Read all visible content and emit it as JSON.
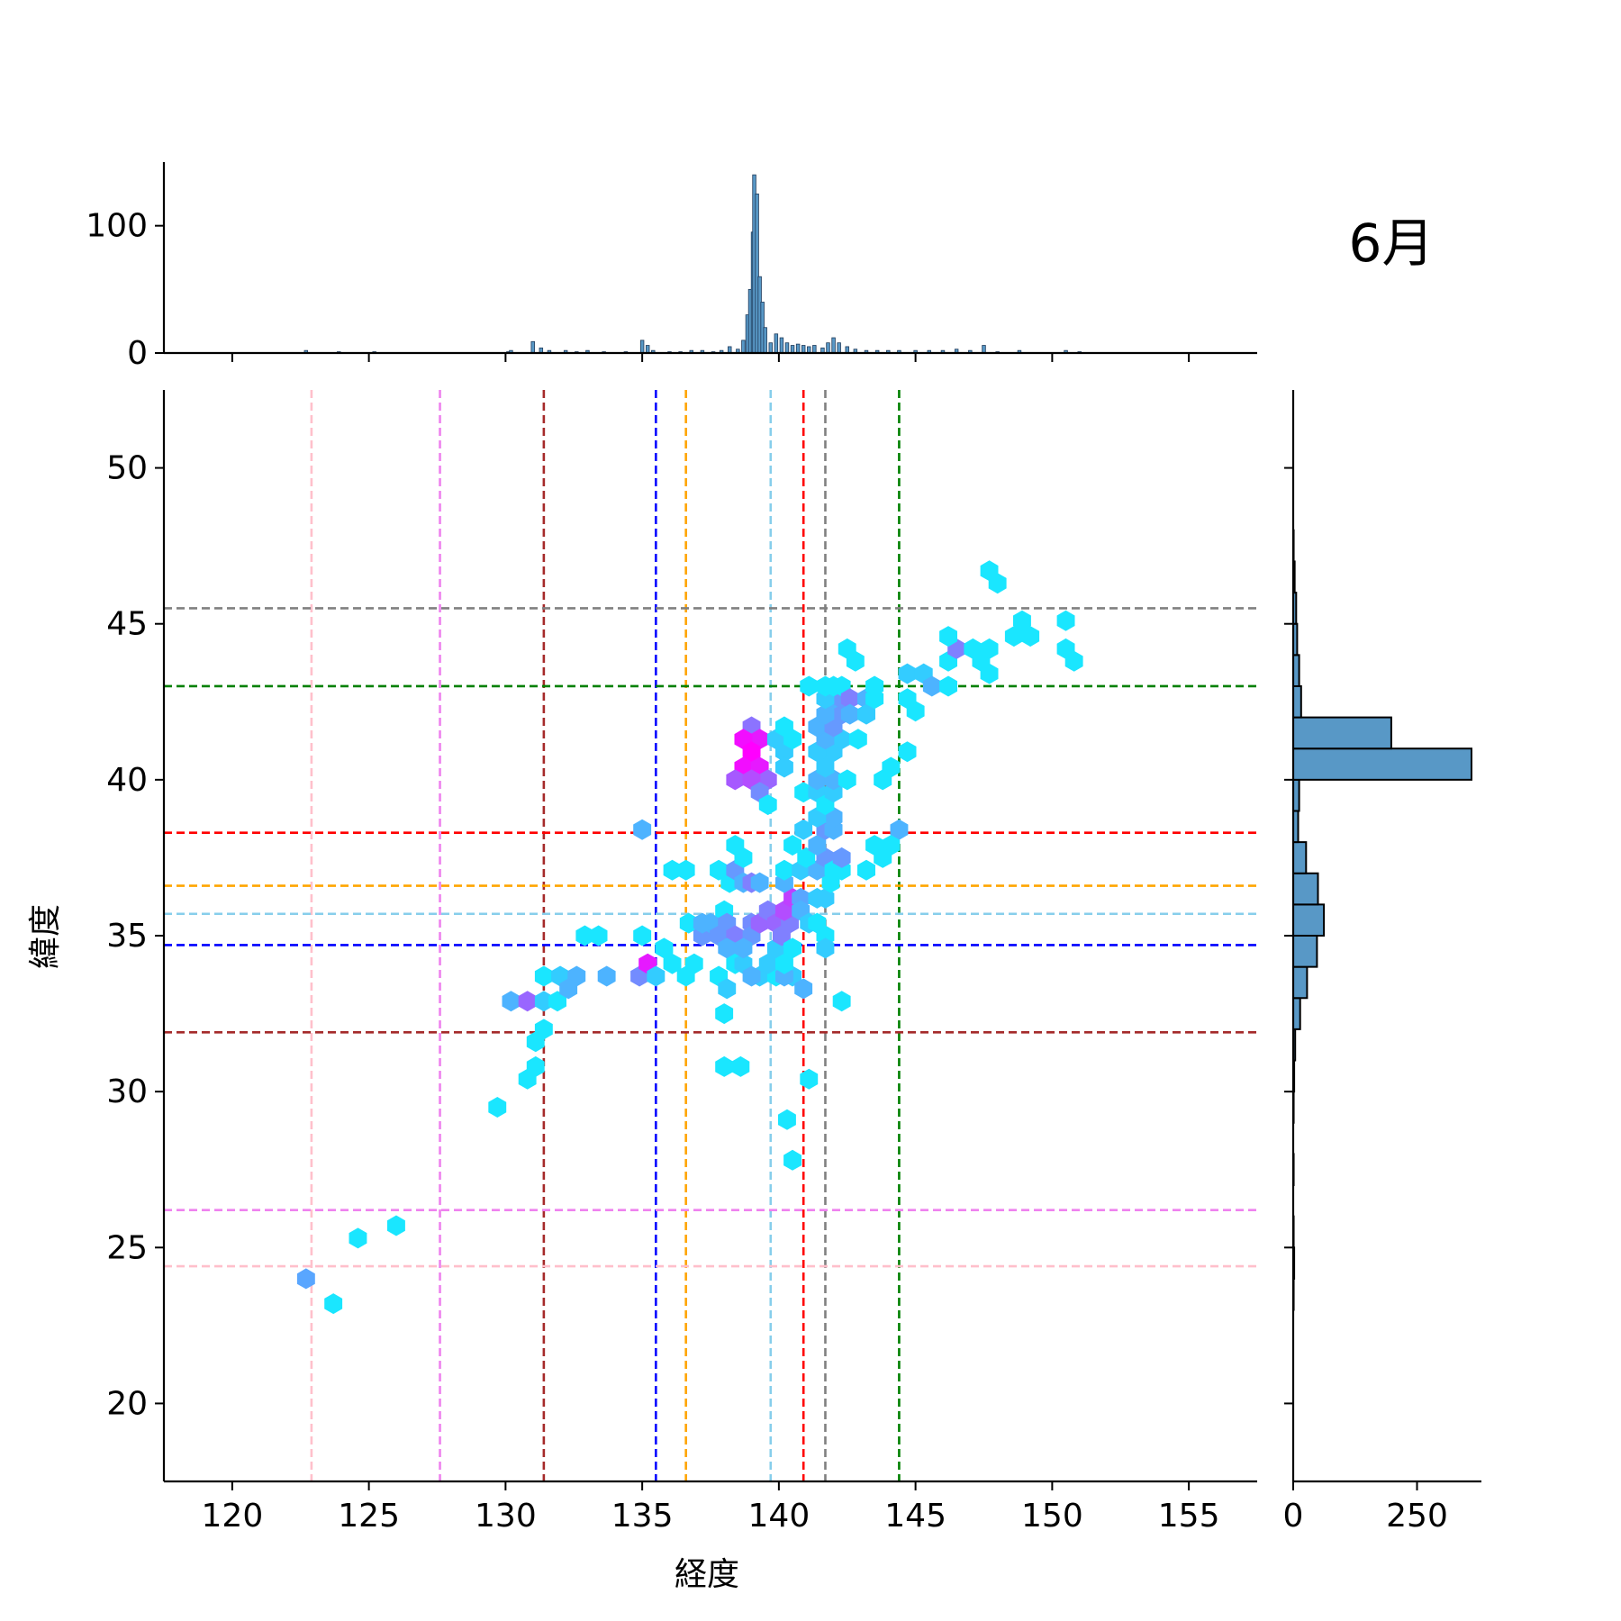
{
  "chart_data": {
    "type": "hexbin-jointplot",
    "title": "6月",
    "xlabel": "経度",
    "ylabel": "緯度",
    "xlim": [
      117.5,
      157.5
    ],
    "ylim": [
      17.5,
      52.5
    ],
    "x_ticks": [
      120,
      125,
      130,
      135,
      140,
      145,
      150,
      155
    ],
    "y_ticks": [
      20,
      25,
      30,
      35,
      40,
      45,
      50
    ],
    "top_hist": {
      "ylim": [
        0,
        150
      ],
      "ticks": [
        0,
        100
      ],
      "bins": [
        [
          122.7,
          2
        ],
        [
          123.9,
          1
        ],
        [
          125.2,
          1
        ],
        [
          130.1,
          1
        ],
        [
          130.2,
          2
        ],
        [
          131.0,
          9
        ],
        [
          131.3,
          4
        ],
        [
          131.6,
          2
        ],
        [
          132.2,
          2
        ],
        [
          132.6,
          1
        ],
        [
          133.0,
          2
        ],
        [
          133.6,
          1
        ],
        [
          134.4,
          1
        ],
        [
          135.0,
          10
        ],
        [
          135.2,
          6
        ],
        [
          135.4,
          2
        ],
        [
          136.0,
          1
        ],
        [
          136.4,
          1
        ],
        [
          136.8,
          2
        ],
        [
          137.2,
          2
        ],
        [
          137.6,
          1
        ],
        [
          137.9,
          2
        ],
        [
          138.2,
          5
        ],
        [
          138.5,
          3
        ],
        [
          138.7,
          10
        ],
        [
          138.85,
          30
        ],
        [
          138.95,
          50
        ],
        [
          139.05,
          95
        ],
        [
          139.1,
          140
        ],
        [
          139.2,
          125
        ],
        [
          139.3,
          60
        ],
        [
          139.4,
          40
        ],
        [
          139.5,
          20
        ],
        [
          139.7,
          8
        ],
        [
          139.9,
          15
        ],
        [
          140.1,
          12
        ],
        [
          140.3,
          8
        ],
        [
          140.5,
          6
        ],
        [
          140.7,
          7
        ],
        [
          140.9,
          6
        ],
        [
          141.1,
          5
        ],
        [
          141.3,
          6
        ],
        [
          141.6,
          4
        ],
        [
          141.8,
          8
        ],
        [
          142.0,
          12
        ],
        [
          142.2,
          8
        ],
        [
          142.5,
          5
        ],
        [
          142.8,
          3
        ],
        [
          143.2,
          2
        ],
        [
          143.6,
          2
        ],
        [
          144.0,
          2
        ],
        [
          144.4,
          2
        ],
        [
          145.0,
          2
        ],
        [
          145.5,
          2
        ],
        [
          146.0,
          2
        ],
        [
          146.5,
          3
        ],
        [
          147.0,
          2
        ],
        [
          147.5,
          6
        ],
        [
          148.0,
          1
        ],
        [
          148.8,
          2
        ],
        [
          150.5,
          2
        ],
        [
          151.0,
          1
        ]
      ]
    },
    "right_hist": {
      "xlim": [
        0,
        380
      ],
      "ticks": [
        0,
        250
      ],
      "bins": [
        [
          23.5,
          1
        ],
        [
          24.5,
          2
        ],
        [
          25.5,
          1
        ],
        [
          27.5,
          1
        ],
        [
          29.5,
          1
        ],
        [
          30.5,
          2
        ],
        [
          31.5,
          4
        ],
        [
          32.5,
          14
        ],
        [
          33.5,
          28
        ],
        [
          34.5,
          48
        ],
        [
          35.5,
          62
        ],
        [
          36.5,
          50
        ],
        [
          37.5,
          26
        ],
        [
          38.5,
          10
        ],
        [
          39.5,
          12
        ],
        [
          40.5,
          360
        ],
        [
          41.5,
          198
        ],
        [
          42.5,
          16
        ],
        [
          43.5,
          12
        ],
        [
          44.5,
          8
        ],
        [
          45.5,
          6
        ],
        [
          46.5,
          3
        ],
        [
          47.5,
          1
        ]
      ]
    },
    "hexbins": [
      [
        122.7,
        24.0,
        0.35
      ],
      [
        123.7,
        23.2,
        0.1
      ],
      [
        124.6,
        25.3,
        0.1
      ],
      [
        126.0,
        25.7,
        0.1
      ],
      [
        129.7,
        29.5,
        0.1
      ],
      [
        130.8,
        30.4,
        0.1
      ],
      [
        131.1,
        30.8,
        0.1
      ],
      [
        131.1,
        31.6,
        0.1
      ],
      [
        131.4,
        32.0,
        0.1
      ],
      [
        130.2,
        32.9,
        0.3
      ],
      [
        130.8,
        32.9,
        0.6
      ],
      [
        131.4,
        32.9,
        0.2
      ],
      [
        131.9,
        32.9,
        0.1
      ],
      [
        131.4,
        33.7,
        0.1
      ],
      [
        132.0,
        33.7,
        0.2
      ],
      [
        132.6,
        33.7,
        0.3
      ],
      [
        132.3,
        33.3,
        0.3
      ],
      [
        132.9,
        35.0,
        0.1
      ],
      [
        133.4,
        35.0,
        0.1
      ],
      [
        133.7,
        33.7,
        0.3
      ],
      [
        135.0,
        38.4,
        0.3
      ],
      [
        134.9,
        33.7,
        0.45
      ],
      [
        135.2,
        34.1,
        0.9
      ],
      [
        135.5,
        33.7,
        0.2
      ],
      [
        135.0,
        35.0,
        0.1
      ],
      [
        135.8,
        34.6,
        0.1
      ],
      [
        136.1,
        34.1,
        0.1
      ],
      [
        136.6,
        33.7,
        0.1
      ],
      [
        136.9,
        34.1,
        0.1
      ],
      [
        136.1,
        37.1,
        0.1
      ],
      [
        136.6,
        37.1,
        0.1
      ],
      [
        136.7,
        35.4,
        0.1
      ],
      [
        137.2,
        35.0,
        0.4
      ],
      [
        137.5,
        35.4,
        0.3
      ],
      [
        137.8,
        35.0,
        0.4
      ],
      [
        137.2,
        35.4,
        0.3
      ],
      [
        137.8,
        37.1,
        0.1
      ],
      [
        138.2,
        36.7,
        0.1
      ],
      [
        138.0,
        35.8,
        0.1
      ],
      [
        138.1,
        35.4,
        0.4
      ],
      [
        138.4,
        35.0,
        0.5
      ],
      [
        138.1,
        34.6,
        0.3
      ],
      [
        138.4,
        34.1,
        0.1
      ],
      [
        137.8,
        33.7,
        0.1
      ],
      [
        138.1,
        33.3,
        0.2
      ],
      [
        138.0,
        32.5,
        0.1
      ],
      [
        138.0,
        30.8,
        0.1
      ],
      [
        138.6,
        30.8,
        0.1
      ],
      [
        138.4,
        37.1,
        0.4
      ],
      [
        138.7,
        36.7,
        0.3
      ],
      [
        139.0,
        36.7,
        0.5
      ],
      [
        139.3,
        36.7,
        0.3
      ],
      [
        139.0,
        35.4,
        0.45
      ],
      [
        139.0,
        35.0,
        0.4
      ],
      [
        139.3,
        35.4,
        0.6
      ],
      [
        139.6,
        35.8,
        0.5
      ],
      [
        138.7,
        34.1,
        0.2
      ],
      [
        138.7,
        34.6,
        0.3
      ],
      [
        139.3,
        33.7,
        0.2
      ],
      [
        139.0,
        33.7,
        0.3
      ],
      [
        139.9,
        33.7,
        0.1
      ],
      [
        139.6,
        34.1,
        0.2
      ],
      [
        139.9,
        34.6,
        0.2
      ],
      [
        139.9,
        35.4,
        0.6
      ],
      [
        140.1,
        35.0,
        0.5
      ],
      [
        140.4,
        35.4,
        0.5
      ],
      [
        140.2,
        35.8,
        0.7
      ],
      [
        140.5,
        36.2,
        0.75
      ],
      [
        140.2,
        36.7,
        0.3
      ],
      [
        140.8,
        36.2,
        0.35
      ],
      [
        140.8,
        35.8,
        0.3
      ],
      [
        140.5,
        33.7,
        0.2
      ],
      [
        140.2,
        33.7,
        0.3
      ],
      [
        140.2,
        34.1,
        0.1
      ],
      [
        140.5,
        34.6,
        0.1
      ],
      [
        140.9,
        33.3,
        0.3
      ],
      [
        140.2,
        37.1,
        0.1
      ],
      [
        140.8,
        37.1,
        0.2
      ],
      [
        141.1,
        35.4,
        0.2
      ],
      [
        141.4,
        35.4,
        0.1
      ],
      [
        141.7,
        35.0,
        0.1
      ],
      [
        141.7,
        34.6,
        0.2
      ],
      [
        141.4,
        36.2,
        0.2
      ],
      [
        141.7,
        36.2,
        0.2
      ],
      [
        141.9,
        36.7,
        0.1
      ],
      [
        141.4,
        37.1,
        0.3
      ],
      [
        141.7,
        37.5,
        0.4
      ],
      [
        142.0,
        37.1,
        0.1
      ],
      [
        142.3,
        37.1,
        0.1
      ],
      [
        142.3,
        37.5,
        0.4
      ],
      [
        141.0,
        37.5,
        0.1
      ],
      [
        141.4,
        37.9,
        0.3
      ],
      [
        141.7,
        38.4,
        0.4
      ],
      [
        142.0,
        38.4,
        0.3
      ],
      [
        142.0,
        38.8,
        0.3
      ],
      [
        141.4,
        38.8,
        0.2
      ],
      [
        140.9,
        38.4,
        0.2
      ],
      [
        140.9,
        39.6,
        0.1
      ],
      [
        141.4,
        39.6,
        0.2
      ],
      [
        141.7,
        39.2,
        0.1
      ],
      [
        142.0,
        39.6,
        0.2
      ],
      [
        141.4,
        40.0,
        0.3
      ],
      [
        142.0,
        40.0,
        0.3
      ],
      [
        141.7,
        40.4,
        0.2
      ],
      [
        142.0,
        40.9,
        0.2
      ],
      [
        142.3,
        41.3,
        0.2
      ],
      [
        141.4,
        40.9,
        0.2
      ],
      [
        141.7,
        41.3,
        0.3
      ],
      [
        141.4,
        41.7,
        0.3
      ],
      [
        142.0,
        41.7,
        0.4
      ],
      [
        142.3,
        42.1,
        0.4
      ],
      [
        141.7,
        42.1,
        0.3
      ],
      [
        142.0,
        42.6,
        0.3
      ],
      [
        142.3,
        42.6,
        0.4
      ],
      [
        141.7,
        42.6,
        0.2
      ],
      [
        141.1,
        43.0,
        0.1
      ],
      [
        141.7,
        43.0,
        0.1
      ],
      [
        142.3,
        43.0,
        0.1
      ],
      [
        142.6,
        42.6,
        0.5
      ],
      [
        143.2,
        42.6,
        0.3
      ],
      [
        142.6,
        42.1,
        0.3
      ],
      [
        143.2,
        42.1,
        0.2
      ],
      [
        142.9,
        41.3,
        0.1
      ],
      [
        142.5,
        40.0,
        0.1
      ],
      [
        142.0,
        43.0,
        0.1
      ],
      [
        143.5,
        42.6,
        0.1
      ],
      [
        143.5,
        43.0,
        0.1
      ],
      [
        142.5,
        44.2,
        0.1
      ],
      [
        142.8,
        43.8,
        0.1
      ],
      [
        144.7,
        43.4,
        0.2
      ],
      [
        145.3,
        43.4,
        0.2
      ],
      [
        144.7,
        42.6,
        0.1
      ],
      [
        145.0,
        42.2,
        0.1
      ],
      [
        145.6,
        43.0,
        0.3
      ],
      [
        146.2,
        43.0,
        0.1
      ],
      [
        146.2,
        43.8,
        0.1
      ],
      [
        146.5,
        44.2,
        0.5
      ],
      [
        146.2,
        44.6,
        0.1
      ],
      [
        147.1,
        44.2,
        0.1
      ],
      [
        147.4,
        43.8,
        0.1
      ],
      [
        147.7,
        43.4,
        0.1
      ],
      [
        147.7,
        44.2,
        0.1
      ],
      [
        148.6,
        44.6,
        0.1
      ],
      [
        148.9,
        45.1,
        0.1
      ],
      [
        149.2,
        44.6,
        0.1
      ],
      [
        150.5,
        45.1,
        0.1
      ],
      [
        150.5,
        44.2,
        0.1
      ],
      [
        150.8,
        43.8,
        0.1
      ],
      [
        147.7,
        46.7,
        0.1
      ],
      [
        148.0,
        46.3,
        0.1
      ],
      [
        144.4,
        38.4,
        0.3
      ],
      [
        144.1,
        37.9,
        0.1
      ],
      [
        143.5,
        37.9,
        0.1
      ],
      [
        143.2,
        37.1,
        0.1
      ],
      [
        143.8,
        37.5,
        0.1
      ],
      [
        143.8,
        40.0,
        0.1
      ],
      [
        144.1,
        40.4,
        0.1
      ],
      [
        144.7,
        40.9,
        0.1
      ],
      [
        139.0,
        41.7,
        0.55
      ],
      [
        139.3,
        41.3,
        0.9
      ],
      [
        138.7,
        41.3,
        0.95
      ],
      [
        139.0,
        40.9,
        1.0
      ],
      [
        138.7,
        40.4,
        0.95
      ],
      [
        139.3,
        40.4,
        0.9
      ],
      [
        138.4,
        40.0,
        0.65
      ],
      [
        139.6,
        40.0,
        0.6
      ],
      [
        139.0,
        40.0,
        0.7
      ],
      [
        139.9,
        41.3,
        0.2
      ],
      [
        140.2,
        40.9,
        0.2
      ],
      [
        140.5,
        41.3,
        0.1
      ],
      [
        140.2,
        41.7,
        0.1
      ],
      [
        139.3,
        39.6,
        0.45
      ],
      [
        139.6,
        39.2,
        0.1
      ],
      [
        140.2,
        40.4,
        0.2
      ],
      [
        138.4,
        37.9,
        0.1
      ],
      [
        138.7,
        37.5,
        0.1
      ],
      [
        140.5,
        37.9,
        0.1
      ],
      [
        141.1,
        30.4,
        0.1
      ],
      [
        140.3,
        29.1,
        0.1
      ],
      [
        140.5,
        27.8,
        0.1
      ],
      [
        142.3,
        32.9,
        0.1
      ]
    ],
    "vlines": [
      {
        "x": 122.9,
        "color": "#ffc0cb"
      },
      {
        "x": 127.6,
        "color": "#ee82ee"
      },
      {
        "x": 131.4,
        "color": "#a52a2a"
      },
      {
        "x": 135.5,
        "color": "#0000ff"
      },
      {
        "x": 136.6,
        "color": "#ffa500"
      },
      {
        "x": 139.7,
        "color": "#87ceeb"
      },
      {
        "x": 140.9,
        "color": "#ff0000"
      },
      {
        "x": 141.7,
        "color": "#808080"
      },
      {
        "x": 144.4,
        "color": "#008000"
      }
    ],
    "hlines": [
      {
        "y": 24.4,
        "color": "#ffc0cb"
      },
      {
        "y": 26.2,
        "color": "#ee82ee"
      },
      {
        "y": 31.9,
        "color": "#a52a2a"
      },
      {
        "y": 34.7,
        "color": "#0000ff"
      },
      {
        "y": 35.7,
        "color": "#87ceeb"
      },
      {
        "y": 36.6,
        "color": "#ffa500"
      },
      {
        "y": 38.3,
        "color": "#ff0000"
      },
      {
        "y": 43.0,
        "color": "#008000"
      },
      {
        "y": 45.5,
        "color": "#808080"
      }
    ],
    "colors": {
      "hex_low": "#00ffff",
      "hex_high": "#ff00ff",
      "hist_fill": "#5898c6",
      "hist_edge": "#1f3a5a"
    }
  }
}
